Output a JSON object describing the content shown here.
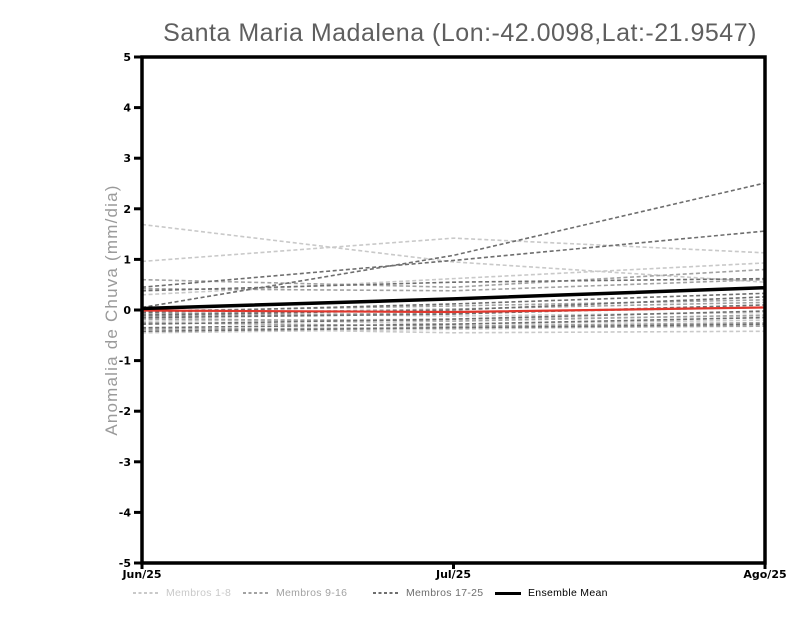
{
  "title": "Santa Maria Madalena (Lon:-42.0098,Lat:-21.9547)",
  "colors": {
    "background": "#ffffff",
    "frame": "#000000",
    "tick_label": "#000000",
    "title_text": "#5f5f5f",
    "y_axis_label_text": "#9a9a9a",
    "membros_1_8": "#c9c9c9",
    "membros_9_16": "#a2a2a2",
    "membros_17_25": "#6e6e6e",
    "ensemble_mean": "#000000",
    "red_line": "#e0362c"
  },
  "legend": {
    "items": [
      {
        "label": "Membros 1-8",
        "color_key": "membros_1_8",
        "line_style": "dashed"
      },
      {
        "label": "Membros 9-16",
        "color_key": "membros_9_16",
        "line_style": "dashed"
      },
      {
        "label": "Membros 17-25",
        "color_key": "membros_17_25",
        "line_style": "dashed"
      },
      {
        "label": "Ensemble Mean",
        "color_key": "ensemble_mean",
        "line_style": "solid"
      }
    ]
  },
  "chart_data": {
    "type": "line",
    "title": "Santa Maria Madalena (Lon:-42.0098,Lat:-21.9547)",
    "xlabel": "",
    "ylabel": "Anomalia de Chuva (mm/dia)",
    "ylim": [
      -5,
      5
    ],
    "yticks": [
      5,
      4,
      3,
      2,
      1,
      0,
      -1,
      -2,
      -3,
      -4,
      -5
    ],
    "x": [
      "Jun/25",
      "Jul/25",
      "Ago/25"
    ],
    "grid": false,
    "legend_position": "bottom",
    "series": [
      {
        "name": "Membro 1",
        "group": "membros_1_8",
        "style": "dashed",
        "values": [
          1.69,
          0.95,
          0.55
        ]
      },
      {
        "name": "Membro 2",
        "group": "membros_1_8",
        "style": "dashed",
        "values": [
          0.96,
          1.42,
          1.13
        ]
      },
      {
        "name": "Membro 3",
        "group": "membros_1_8",
        "style": "dashed",
        "values": [
          0.3,
          0.62,
          0.93
        ]
      },
      {
        "name": "Membro 4",
        "group": "membros_1_8",
        "style": "dashed",
        "values": [
          -0.05,
          -0.12,
          -0.05
        ]
      },
      {
        "name": "Membro 5",
        "group": "membros_1_8",
        "style": "dashed",
        "values": [
          -0.15,
          -0.28,
          -0.2
        ]
      },
      {
        "name": "Membro 6",
        "group": "membros_1_8",
        "style": "dashed",
        "values": [
          -0.35,
          -0.45,
          -0.42
        ]
      },
      {
        "name": "Membro 7",
        "group": "membros_1_8",
        "style": "dashed",
        "values": [
          -0.45,
          -0.38,
          -0.3
        ]
      },
      {
        "name": "Membro 8",
        "group": "membros_1_8",
        "style": "dashed",
        "values": [
          -0.22,
          -0.18,
          -0.12
        ]
      },
      {
        "name": "Membro 9",
        "group": "membros_9_16",
        "style": "dashed",
        "values": [
          0.6,
          0.45,
          0.8
        ]
      },
      {
        "name": "Membro 10",
        "group": "membros_9_16",
        "style": "dashed",
        "values": [
          0.42,
          0.38,
          0.6
        ]
      },
      {
        "name": "Membro 11",
        "group": "membros_9_16",
        "style": "dashed",
        "values": [
          -0.08,
          0.02,
          0.15
        ]
      },
      {
        "name": "Membro 12",
        "group": "membros_9_16",
        "style": "dashed",
        "values": [
          -0.12,
          -0.06,
          0.05
        ]
      },
      {
        "name": "Membro 13",
        "group": "membros_9_16",
        "style": "dashed",
        "values": [
          -0.18,
          -0.22,
          -0.1
        ]
      },
      {
        "name": "Membro 14",
        "group": "membros_9_16",
        "style": "dashed",
        "values": [
          -0.25,
          -0.32,
          -0.25
        ]
      },
      {
        "name": "Membro 15",
        "group": "membros_9_16",
        "style": "dashed",
        "values": [
          -0.38,
          -0.35,
          -0.32
        ]
      },
      {
        "name": "Membro 16",
        "group": "membros_9_16",
        "style": "dashed",
        "values": [
          -0.02,
          0.08,
          0.2
        ]
      },
      {
        "name": "Membro 17",
        "group": "membros_17_25",
        "style": "dashed",
        "values": [
          0.05,
          1.08,
          2.51
        ]
      },
      {
        "name": "Membro 18",
        "group": "membros_17_25",
        "style": "dashed",
        "values": [
          0.45,
          0.98,
          1.56
        ]
      },
      {
        "name": "Membro 19",
        "group": "membros_17_25",
        "style": "dashed",
        "values": [
          0.38,
          0.55,
          0.62
        ]
      },
      {
        "name": "Membro 20",
        "group": "membros_17_25",
        "style": "dashed",
        "values": [
          -0.05,
          0.12,
          0.33
        ]
      },
      {
        "name": "Membro 21",
        "group": "membros_17_25",
        "style": "dashed",
        "values": [
          -0.1,
          0.0,
          0.26
        ]
      },
      {
        "name": "Membro 22",
        "group": "membros_17_25",
        "style": "dashed",
        "values": [
          -0.15,
          -0.08,
          0.1
        ]
      },
      {
        "name": "Membro 23",
        "group": "membros_17_25",
        "style": "dashed",
        "values": [
          -0.28,
          -0.18,
          -0.02
        ]
      },
      {
        "name": "Membro 24",
        "group": "membros_17_25",
        "style": "dashed",
        "values": [
          -0.35,
          -0.28,
          -0.15
        ]
      },
      {
        "name": "Membro 25",
        "group": "membros_17_25",
        "style": "dashed",
        "values": [
          -0.42,
          -0.35,
          -0.28
        ]
      },
      {
        "name": "Red Line",
        "group": "red_line",
        "style": "solid",
        "values": [
          -0.01,
          -0.04,
          0.05
        ]
      },
      {
        "name": "Ensemble Mean",
        "group": "ensemble_mean",
        "style": "solid",
        "values": [
          0.03,
          0.22,
          0.44
        ]
      }
    ]
  }
}
